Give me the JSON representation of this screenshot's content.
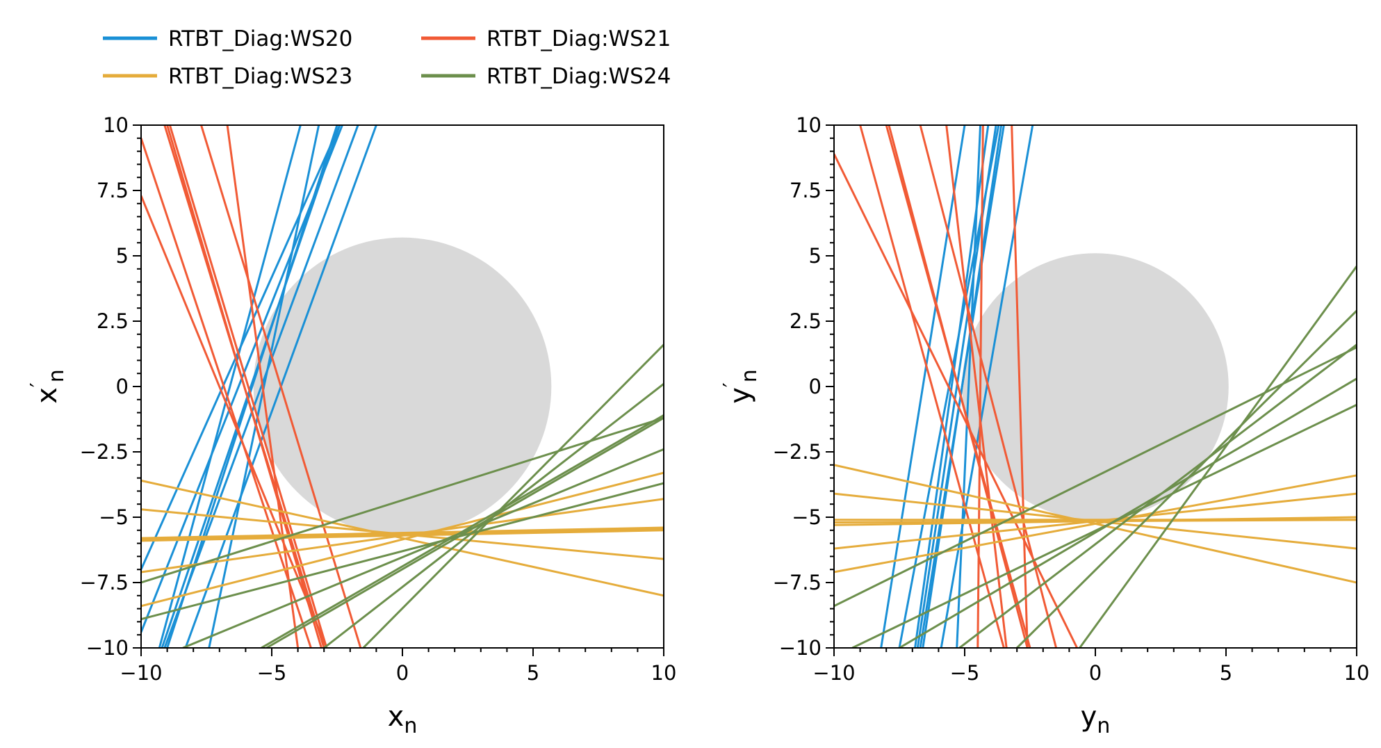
{
  "chart_data": {
    "type": "line",
    "legend": {
      "placement": "top-left",
      "entries": [
        {
          "label": "RTBT_Diag:WS20",
          "color": "#1a90d6"
        },
        {
          "label": "RTBT_Diag:WS21",
          "color": "#f15a35"
        },
        {
          "label": "RTBT_Diag:WS23",
          "color": "#e5ac3b"
        },
        {
          "label": "RTBT_Diag:WS24",
          "color": "#6c8f4c"
        }
      ]
    },
    "panels": [
      {
        "xlabel": "x",
        "xlabel_sub": "n",
        "ylabel": "x",
        "ylabel_sub": "n",
        "ylabel_prime": "′",
        "xlim": [
          -10,
          10
        ],
        "ylim": [
          -10,
          10
        ],
        "xticks": [
          "−10",
          "−5",
          "0",
          "5",
          "10"
        ],
        "yticks": [
          "−10",
          "−7.5",
          "−5",
          "−2.5",
          "0",
          "2.5",
          "5",
          "7.5",
          "10"
        ],
        "grid": false,
        "circle": {
          "cx": 0,
          "cy": 0,
          "r": 5.7,
          "color": "#d9d9d9"
        },
        "series": [
          {
            "color": "#1a90d6",
            "lines": [
              [
                [
                  -9.3,
                  -10
                ],
                [
                  -3.9,
                  10
                ]
              ],
              [
                [
                  -9.0,
                  -10
                ],
                [
                  -2.5,
                  10
                ]
              ],
              [
                [
                  -8.3,
                  -10
                ],
                [
                  -1.0,
                  10
                ]
              ],
              [
                [
                  -7.4,
                  -10
                ],
                [
                  -3.2,
                  10
                ]
              ],
              [
                [
                  -10,
                  -7.0
                ],
                [
                  -2.4,
                  10
                ]
              ],
              [
                [
                  -10,
                  -9.4
                ],
                [
                  -2.3,
                  10
                ]
              ],
              [
                [
                  -9.2,
                  -10
                ],
                [
                  -2.4,
                  10
                ]
              ],
              [
                [
                  -9.1,
                  -10
                ],
                [
                  -1.7,
                  10
                ]
              ]
            ]
          },
          {
            "color": "#f15a35",
            "lines": [
              [
                [
                  -9.1,
                  10
                ],
                [
                  -3.0,
                  -10
                ]
              ],
              [
                [
                  -8.9,
                  10
                ],
                [
                  -2.9,
                  -10
                ]
              ],
              [
                [
                  -7.7,
                  10
                ],
                [
                  -1.6,
                  -10
                ]
              ],
              [
                [
                  -6.7,
                  10
                ],
                [
                  -4.0,
                  -10
                ]
              ],
              [
                [
                  -10,
                  9.5
                ],
                [
                  -3.5,
                  -10
                ]
              ],
              [
                [
                  -10,
                  7.3
                ],
                [
                  -2.9,
                  -10
                ]
              ],
              [
                [
                  -9.0,
                  10
                ],
                [
                  -3.1,
                  -10
                ]
              ]
            ]
          },
          {
            "color": "#e5ac3b",
            "lines": [
              [
                [
                  -10,
                  -3.6
                ],
                [
                  10,
                  -8.0
                ]
              ],
              [
                [
                  -10,
                  -4.7
                ],
                [
                  10,
                  -6.6
                ]
              ],
              [
                [
                  -10,
                  -5.9
                ],
                [
                  10,
                  -5.5
                ]
              ],
              [
                [
                  -10,
                  -5.8
                ],
                [
                  10,
                  -5.4
                ]
              ],
              [
                [
                  -10,
                  -7.1
                ],
                [
                  10,
                  -4.3
                ]
              ],
              [
                [
                  -10,
                  -8.4
                ],
                [
                  10,
                  -3.3
                ]
              ],
              [
                [
                  -10,
                  -5.85
                ],
                [
                  10,
                  -5.45
                ]
              ]
            ]
          },
          {
            "color": "#6c8f4c",
            "lines": [
              [
                [
                  -1.5,
                  -10
                ],
                [
                  10,
                  1.6
                ]
              ],
              [
                [
                  -3.0,
                  -10
                ],
                [
                  10,
                  0.1
                ]
              ],
              [
                [
                  -5.4,
                  -10
                ],
                [
                  10,
                  -1.1
                ]
              ],
              [
                [
                  -8.4,
                  -10
                ],
                [
                  10,
                  -2.4
                ]
              ],
              [
                [
                  -10,
                  -8.9
                ],
                [
                  10,
                  -3.7
                ]
              ],
              [
                [
                  -10,
                  -7.5
                ],
                [
                  10,
                  -1.2
                ]
              ],
              [
                [
                  -5.2,
                  -10
                ],
                [
                  10,
                  -1.2
                ]
              ]
            ]
          }
        ]
      },
      {
        "xlabel": "y",
        "xlabel_sub": "n",
        "ylabel": "y",
        "ylabel_sub": "n",
        "ylabel_prime": "′",
        "xlim": [
          -10,
          10
        ],
        "ylim": [
          -10,
          10
        ],
        "xticks": [
          "−10",
          "−5",
          "0",
          "5",
          "10"
        ],
        "yticks": [
          "−10",
          "−7.5",
          "−5",
          "−2.5",
          "0",
          "2.5",
          "5",
          "7.5",
          "10"
        ],
        "grid": false,
        "circle": {
          "cx": 0,
          "cy": 0,
          "r": 5.1,
          "color": "#d9d9d9"
        },
        "series": [
          {
            "color": "#1a90d6",
            "lines": [
              [
                [
                  -8.2,
                  -10
                ],
                [
                  -5.0,
                  10
                ]
              ],
              [
                [
                  -7.5,
                  -10
                ],
                [
                  -3.7,
                  10
                ]
              ],
              [
                [
                  -6.8,
                  -10
                ],
                [
                  -3.8,
                  10
                ]
              ],
              [
                [
                  -6.7,
                  -10
                ],
                [
                  -3.5,
                  10
                ]
              ],
              [
                [
                  -5.9,
                  -10
                ],
                [
                  -2.4,
                  10
                ]
              ],
              [
                [
                  -5.3,
                  -10
                ],
                [
                  -4.4,
                  10
                ]
              ],
              [
                [
                  -6.9,
                  -10
                ],
                [
                  -4.1,
                  10
                ]
              ],
              [
                [
                  -6.6,
                  -10
                ],
                [
                  -3.6,
                  10
                ]
              ]
            ]
          },
          {
            "color": "#f15a35",
            "lines": [
              [
                [
                  -8.0,
                  10
                ],
                [
                  -2.5,
                  -10
                ]
              ],
              [
                [
                  -7.9,
                  10
                ],
                [
                  -2.6,
                  -10
                ]
              ],
              [
                [
                  -6.7,
                  10
                ],
                [
                  -1.5,
                  -10
                ]
              ],
              [
                [
                  -5.7,
                  10
                ],
                [
                  -3.4,
                  -10
                ]
              ],
              [
                [
                  -4.3,
                  10
                ],
                [
                  -4.5,
                  -10
                ]
              ],
              [
                [
                  -10,
                  8.9
                ],
                [
                  -0.7,
                  -10
                ]
              ],
              [
                [
                  -9.0,
                  10
                ],
                [
                  -3.5,
                  -10
                ]
              ],
              [
                [
                  -3.2,
                  10
                ],
                [
                  -2.6,
                  -10
                ]
              ]
            ]
          },
          {
            "color": "#e5ac3b",
            "lines": [
              [
                [
                  -10,
                  -3.0
                ],
                [
                  10,
                  -7.5
                ]
              ],
              [
                [
                  -10,
                  -4.1
                ],
                [
                  10,
                  -6.2
                ]
              ],
              [
                [
                  -10,
                  -5.1
                ],
                [
                  10,
                  -5.1
                ]
              ],
              [
                [
                  -10,
                  -5.3
                ],
                [
                  10,
                  -5.0
                ]
              ],
              [
                [
                  -10,
                  -6.2
                ],
                [
                  10,
                  -4.1
                ]
              ],
              [
                [
                  -10,
                  -7.1
                ],
                [
                  10,
                  -3.4
                ]
              ],
              [
                [
                  -10,
                  -5.2
                ],
                [
                  10,
                  -5.1
                ]
              ]
            ]
          },
          {
            "color": "#6c8f4c",
            "lines": [
              [
                [
                  -0.6,
                  -10
                ],
                [
                  10,
                  4.6
                ]
              ],
              [
                [
                  -3.0,
                  -10
                ],
                [
                  10,
                  2.9
                ]
              ],
              [
                [
                  -5.2,
                  -10
                ],
                [
                  10,
                  1.6
                ]
              ],
              [
                [
                  -7.5,
                  -10
                ],
                [
                  10,
                  0.3
                ]
              ],
              [
                [
                  -9.3,
                  -10
                ],
                [
                  10,
                  -0.7
                ]
              ],
              [
                [
                  -10,
                  -8.4
                ],
                [
                  10,
                  1.5
                ]
              ]
            ]
          }
        ]
      }
    ]
  }
}
